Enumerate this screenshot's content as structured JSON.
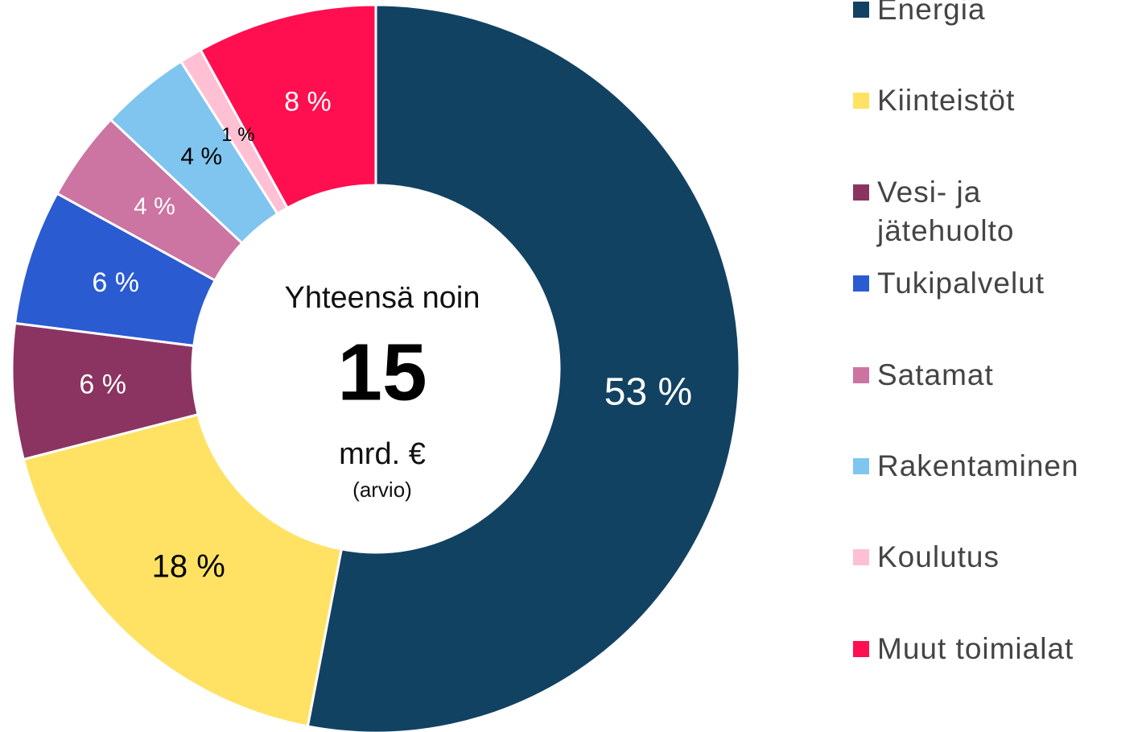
{
  "chart_data": {
    "type": "donut",
    "categories": [
      "Energia",
      "Kiinteistöt",
      "Vesi- ja jätehuolto",
      "Tukipalvelut",
      "Satamat",
      "Rakentaminen",
      "Koulutus",
      "Muut toimialat"
    ],
    "values": [
      53,
      18,
      6,
      6,
      4,
      4,
      1,
      8
    ],
    "value_labels": [
      "53 %",
      "18 %",
      "6 %",
      "6 %",
      "4 %",
      "4 %",
      "1 %",
      "8 %"
    ],
    "colors": [
      "#124262",
      "#ffe264",
      "#8b3461",
      "#2a5bd1",
      "#cc74a2",
      "#7fc5f0",
      "#ffc0d4",
      "#ff0f4f"
    ],
    "center_text": {
      "line1": "Yhteensä noin",
      "total": "15",
      "unit": "mrd. €",
      "note": "(arvio)"
    },
    "legend": "right"
  }
}
